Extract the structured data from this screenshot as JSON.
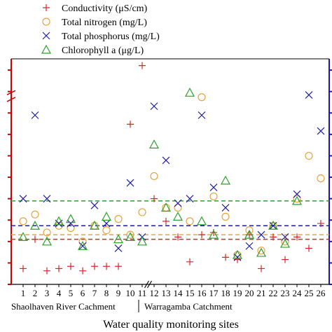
{
  "chart_data": {
    "type": "scatter",
    "title": "",
    "xlabel": "Water quality monitoring sites",
    "ylabel": "",
    "x_categories": [
      "1",
      "2",
      "3",
      "4",
      "5",
      "6",
      "7",
      "8",
      "9",
      "10",
      "11",
      "12",
      "13",
      "14",
      "15",
      "16",
      "17",
      "18",
      "19",
      "20",
      "21",
      "22",
      "23",
      "24",
      "25",
      "26"
    ],
    "groups": [
      {
        "label": "Shaolhaven River Cachment",
        "sites": [
          "1",
          "2",
          "3",
          "4",
          "5",
          "6",
          "7",
          "8",
          "9",
          "10",
          "11"
        ]
      },
      {
        "label": "Warragamba Catchment",
        "sites": [
          "12",
          "13",
          "14",
          "15",
          "16",
          "17",
          "18",
          "19",
          "20",
          "21",
          "22",
          "23",
          "24",
          "25",
          "26"
        ]
      }
    ],
    "ylim": [
      0,
      100
    ],
    "axis_break_x_between": [
      "11",
      "12"
    ],
    "left_axis_color": "#cc0000",
    "right_axis_color": "#1a1aa8",
    "legend_position": "top",
    "series": [
      {
        "name": "Conductivity (μS/cm)",
        "marker": "plus",
        "color": "#d62728",
        "values": [
          7,
          20,
          6,
          7,
          8,
          6,
          8,
          8,
          8,
          71,
          97,
          38,
          28,
          21,
          10,
          22,
          23,
          12,
          11,
          22,
          7,
          21,
          11,
          21,
          16,
          27
        ]
      },
      {
        "name": "Total nitrogen (mg/L)",
        "marker": "circle",
        "color": "#e8a33d",
        "values": [
          28,
          31,
          23,
          26,
          25,
          19,
          26,
          24,
          29,
          22,
          32,
          48,
          34,
          34,
          28,
          83,
          39,
          30,
          13,
          24,
          15,
          26,
          19,
          38,
          57,
          47
        ]
      },
      {
        "name": "Total phosphorus (mg/L)",
        "marker": "x",
        "color": "#1f1fa8",
        "values": [
          38,
          75,
          38,
          27,
          27,
          17,
          35,
          27,
          16,
          45,
          21,
          79,
          55,
          36,
          38,
          75,
          43,
          34,
          12,
          17,
          22,
          26,
          21,
          40,
          84,
          68
        ]
      },
      {
        "name": "Chlorophyll a (μg/L)",
        "marker": "triangle",
        "color": "#2ca02c",
        "values": [
          21,
          26,
          19,
          28,
          29,
          17,
          26,
          30,
          20,
          21,
          19,
          62,
          34,
          30,
          85,
          28,
          22,
          46,
          13,
          22,
          14,
          26,
          18,
          37,
          0,
          0
        ]
      }
    ],
    "present": [
      [
        1,
        1,
        1,
        1,
        1,
        1,
        1,
        1,
        1,
        1,
        1,
        1,
        1,
        1,
        1,
        1,
        1,
        1,
        1,
        1,
        1,
        1,
        1,
        1,
        1,
        1
      ],
      [
        1,
        1,
        1,
        1,
        1,
        1,
        1,
        1,
        1,
        1,
        1,
        1,
        1,
        1,
        1,
        1,
        1,
        1,
        1,
        1,
        1,
        1,
        1,
        1,
        1,
        1
      ],
      [
        1,
        1,
        1,
        1,
        1,
        1,
        1,
        1,
        1,
        1,
        1,
        1,
        1,
        1,
        1,
        1,
        1,
        1,
        1,
        1,
        1,
        1,
        1,
        1,
        1,
        1
      ],
      [
        1,
        1,
        1,
        1,
        1,
        1,
        1,
        1,
        1,
        1,
        1,
        1,
        1,
        1,
        1,
        1,
        1,
        1,
        1,
        1,
        1,
        1,
        1,
        1,
        0,
        0
      ]
    ],
    "reference_lines": [
      {
        "series": "Chlorophyll a (μg/L)",
        "value": 37,
        "color": "#2ca02c",
        "style": "dashed"
      },
      {
        "series": "Total phosphorus (mg/L)",
        "value": 26,
        "color": "#1f1fa8",
        "style": "dashed"
      },
      {
        "series": "Total nitrogen (mg/L)",
        "value": 22,
        "color": "#e8a33d",
        "style": "dashed"
      },
      {
        "series": "Conductivity (μS/cm)",
        "value": 20,
        "color": "#d62728",
        "style": "dashed"
      }
    ]
  }
}
